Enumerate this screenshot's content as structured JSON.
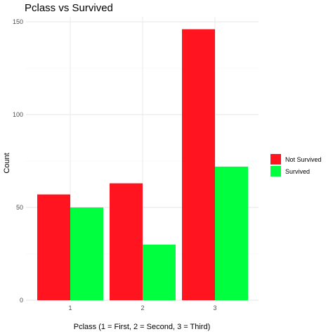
{
  "chart_data": {
    "type": "bar",
    "title": "Pclass vs Survived",
    "xlabel": "Pclass (1 = First, 2 = Second, 3 = Third)",
    "ylabel": "Count",
    "categories": [
      "1",
      "2",
      "3"
    ],
    "series": [
      {
        "name": "Not Survived",
        "color": "#ff1420",
        "values": [
          57,
          63,
          146
        ]
      },
      {
        "name": "Survived",
        "color": "#00ff3e",
        "values": [
          50,
          30,
          72
        ]
      }
    ],
    "ylim": [
      0,
      150
    ],
    "yticks": [
      0,
      50,
      100,
      150
    ],
    "grid": true,
    "legend_position": "right"
  }
}
